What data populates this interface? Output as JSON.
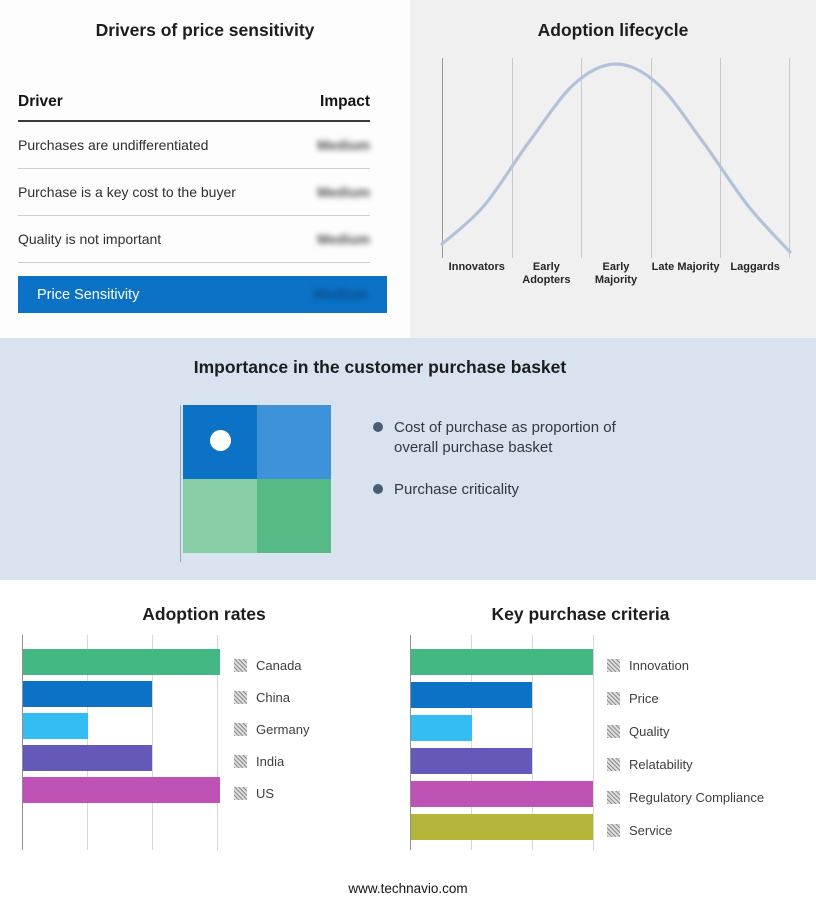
{
  "drivers_panel": {
    "title": "Drivers of price sensitivity",
    "col_driver": "Driver",
    "col_impact": "Impact",
    "rows": [
      {
        "driver": "Purchases are undifferentiated",
        "impact": "Medium"
      },
      {
        "driver": "Purchase is a key cost to the buyer",
        "impact": "Medium"
      },
      {
        "driver": "Quality is not important",
        "impact": "Medium"
      }
    ],
    "summary_label": "Price Sensitivity",
    "summary_impact": "Medium",
    "summary_bg": "#0b72c6",
    "impact_values_blurred": true
  },
  "basket_panel": {
    "title": "Importance in the customer purchase basket",
    "bullets": [
      "Cost of purchase as proportion of overall purchase basket",
      "Purchase criticality"
    ],
    "quadrant_colors": {
      "top_left": "#0b72c6",
      "top_right": "#3d92da",
      "bottom_left": "#88cfa8",
      "bottom_right": "#55ba85"
    }
  },
  "footer": {
    "text": "www.technavio.com"
  },
  "chart_data": [
    {
      "id": "adoption_lifecycle",
      "type": "line",
      "title": "Adoption lifecycle",
      "categories": [
        "Innovators",
        "Early Adopters",
        "Early Majority",
        "Late Majority",
        "Laggards"
      ],
      "description": "Bell-shaped adoption curve peaking over Early Majority",
      "curve_points": [
        [
          0,
          0.93
        ],
        [
          0.12,
          0.74
        ],
        [
          0.25,
          0.42
        ],
        [
          0.38,
          0.13
        ],
        [
          0.5,
          0.03
        ],
        [
          0.62,
          0.13
        ],
        [
          0.75,
          0.42
        ],
        [
          0.88,
          0.74
        ],
        [
          1,
          0.97
        ]
      ],
      "line_color": "#b2c3d9",
      "grid": true,
      "legend_position": "none"
    },
    {
      "id": "adoption_rates",
      "type": "bar",
      "orientation": "horizontal",
      "title": "Adoption rates",
      "categories": [
        "Canada",
        "China",
        "Germany",
        "India",
        "US"
      ],
      "values": [
        3.05,
        2,
        1,
        2,
        3.05
      ],
      "xlim": [
        0,
        3.06
      ],
      "colors": [
        "#44b882",
        "#0b72c6",
        "#33bdf0",
        "#6458b8",
        "#bf52b5"
      ],
      "grid": true,
      "legend_position": "right"
    },
    {
      "id": "key_purchase_criteria",
      "type": "bar",
      "orientation": "horizontal",
      "title": "Key purchase criteria",
      "categories": [
        "Innovation",
        "Price",
        "Quality",
        "Relatability",
        "Regulatory Compliance",
        "Service"
      ],
      "values": [
        3,
        2,
        1,
        2,
        3,
        3
      ],
      "xlim": [
        0,
        3.02
      ],
      "colors": [
        "#44b882",
        "#0b72c6",
        "#33bdf0",
        "#6458b8",
        "#bf52b5",
        "#b4b63c"
      ],
      "grid": true,
      "legend_position": "right"
    }
  ]
}
